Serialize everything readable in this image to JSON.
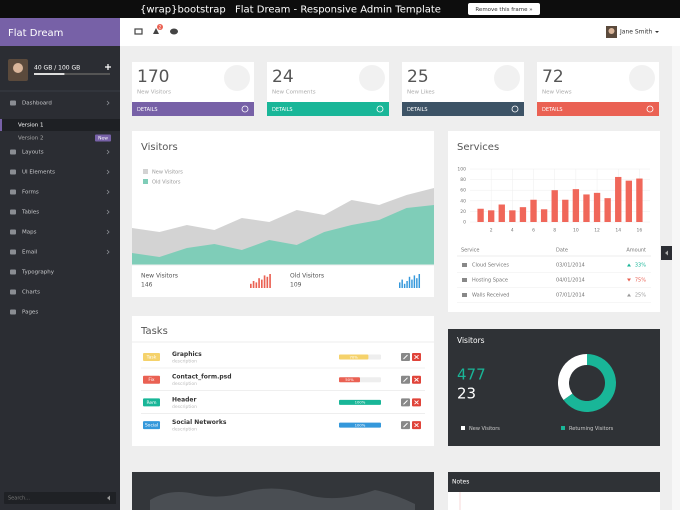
{
  "topbar": {
    "brand": "{wrap}bootstrap",
    "title": "Flat Dream - Responsive Admin Template",
    "button": "Remove this frame »"
  },
  "sidebar": {
    "brand": "Flat Dream",
    "storage": {
      "label": "40 GB / 100 GB",
      "used": 40,
      "total": 100
    },
    "menu": [
      {
        "label": "Dashboard",
        "submenu": true,
        "children": [
          {
            "label": "Version 1",
            "active": true
          },
          {
            "label": "Version 2",
            "badge": "New"
          }
        ]
      },
      {
        "label": "Layouts",
        "submenu": true
      },
      {
        "label": "UI Elements",
        "submenu": true
      },
      {
        "label": "Forms",
        "submenu": true
      },
      {
        "label": "Tables",
        "submenu": true
      },
      {
        "label": "Maps",
        "submenu": true
      },
      {
        "label": "Email",
        "submenu": true
      },
      {
        "label": "Typography",
        "submenu": false
      },
      {
        "label": "Charts",
        "submenu": false
      },
      {
        "label": "Pages",
        "submenu": false
      }
    ],
    "search": "Search..."
  },
  "navbar": {
    "badge": "2",
    "user": "Jane Smith"
  },
  "stats": [
    {
      "value": 170,
      "label": "New Visitors",
      "link": "DETAILS",
      "color": "#7761a7"
    },
    {
      "value": 24,
      "label": "New Comments",
      "link": "DETAILS",
      "color": "#19b698"
    },
    {
      "value": 25,
      "label": "New Likes",
      "link": "DETAILS",
      "color": "#3d5366"
    },
    {
      "value": 72,
      "label": "New Views",
      "link": "DETAILS",
      "color": "#ea6153"
    }
  ],
  "visitors_chart": {
    "type": "area",
    "title": "Visitors",
    "ylim": [
      0,
      100
    ],
    "series": [
      {
        "name": "New Visitors",
        "color": "#d3d3d3",
        "values": [
          37,
          33,
          40,
          35,
          47,
          43,
          55,
          50,
          65,
          60,
          70,
          77
        ]
      },
      {
        "name": "Old Visitors",
        "color": "#7fcdb8",
        "values": [
          12,
          8,
          17,
          21,
          15,
          25,
          20,
          33,
          40,
          45,
          57,
          60
        ]
      }
    ],
    "summary": [
      {
        "label": "New Visitors",
        "value": 146,
        "color": "#ea6153",
        "ylim": [
          0,
          10
        ],
        "spark": [
          3,
          5,
          4,
          7,
          6,
          9,
          8,
          10
        ]
      },
      {
        "label": "Old Visitors",
        "value": 109,
        "color": "#3498db",
        "ylim": [
          0,
          10
        ],
        "spark": [
          4,
          6,
          3,
          5,
          8,
          6,
          9,
          7,
          10
        ]
      }
    ]
  },
  "services_chart": {
    "type": "bar",
    "title": "Services",
    "color": "#f0675a",
    "x": [
      1,
      2,
      3,
      4,
      5,
      6,
      7,
      8,
      9,
      10,
      11,
      12,
      13,
      14,
      15,
      16
    ],
    "values": [
      25,
      22,
      33,
      22,
      28,
      42,
      24,
      60,
      42,
      62,
      52,
      55,
      45,
      85,
      78,
      82
    ],
    "xlim": [
      0,
      17
    ],
    "xticks": [
      2,
      4,
      6,
      8,
      10,
      12,
      14,
      16
    ],
    "ylim": [
      0,
      100
    ],
    "yticks": [
      0,
      20,
      40,
      60,
      80,
      100
    ],
    "grid": true
  },
  "services_table": {
    "header": [
      "Service",
      "Date",
      "Amount"
    ],
    "rows": [
      {
        "cells": [
          "Cloud Services",
          "03/01/2014",
          "33%"
        ],
        "trend": "up",
        "color": "#19b698"
      },
      {
        "cells": [
          "Hosting Space",
          "04/01/2014",
          "75%"
        ],
        "trend": "down",
        "color": "#ea6153"
      },
      {
        "cells": [
          "Walls Received",
          "07/01/2014",
          "25%"
        ],
        "trend": "up",
        "color": "#999999"
      }
    ]
  },
  "tasks": {
    "title": "Tasks",
    "rows": [
      {
        "tag": "Task",
        "tag_color": "#f5d26b",
        "name": "Graphics",
        "description": "description",
        "progress": 70,
        "progress_label": "70%",
        "bar_color": "#f5d26b"
      },
      {
        "tag": "Fix",
        "tag_color": "#ea6153",
        "name": "Contact_form.psd",
        "description": "description",
        "progress": 50,
        "progress_label": "50%",
        "bar_color": "#ea6153"
      },
      {
        "tag": "Rem",
        "tag_color": "#19b698",
        "name": "Header",
        "description": "description",
        "progress": 100,
        "progress_label": "100%",
        "bar_color": "#19b698"
      },
      {
        "tag": "Social",
        "tag_color": "#3498db",
        "name": "Social Networks",
        "description": "description",
        "progress": 100,
        "progress_label": "100%",
        "bar_color": "#3498db"
      }
    ]
  },
  "visitors_donut": {
    "type": "pie",
    "title": "Visitors",
    "numbers": [
      477,
      23
    ],
    "series": [
      {
        "name": "New Visitors",
        "color": "#ffffff"
      },
      {
        "name": "Returning Visitors",
        "color": "#19b698"
      }
    ],
    "values": [
      35,
      65
    ]
  },
  "notes": {
    "title": "Notes"
  }
}
